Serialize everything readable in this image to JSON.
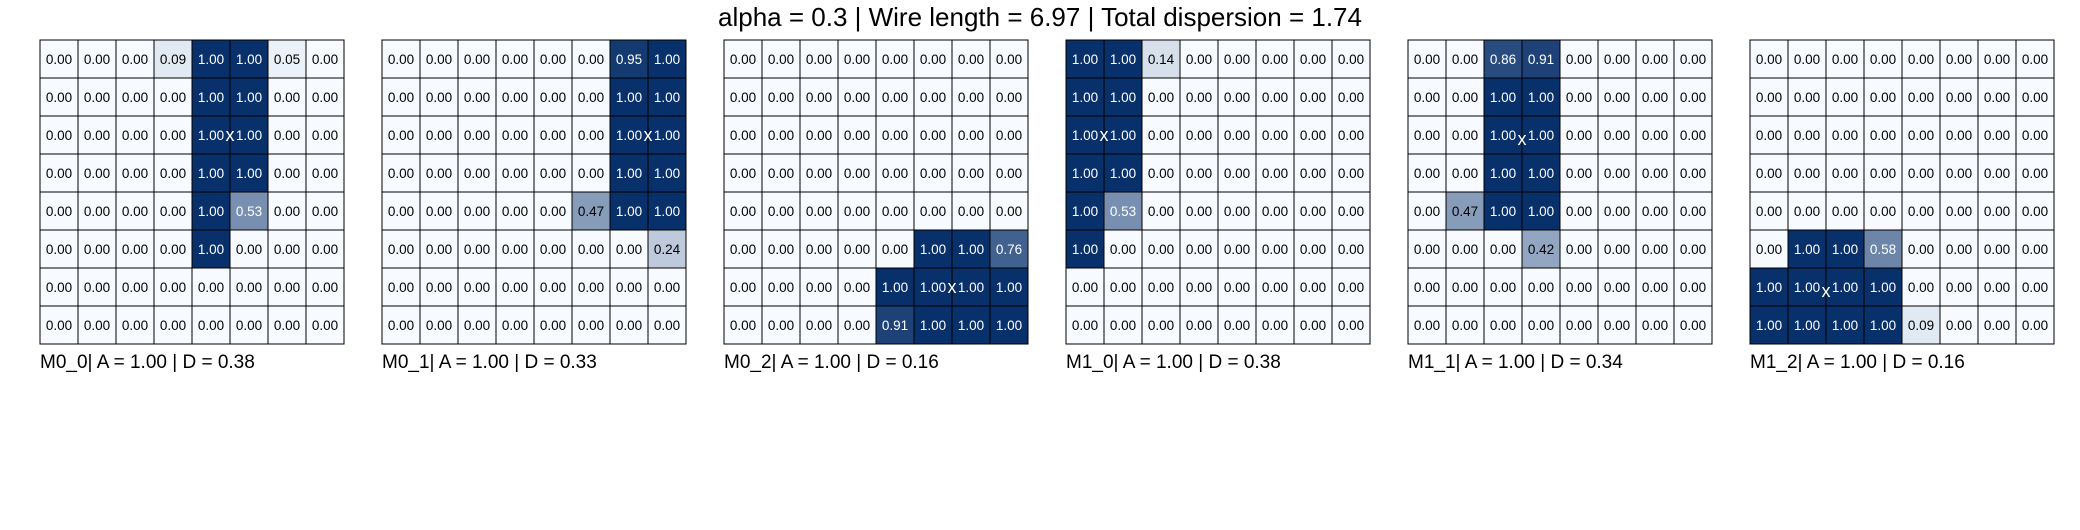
{
  "suptitle": "alpha = 0.3 | Wire length = 6.97 | Total dispersion = 1.74",
  "colormap": {
    "low": "#f7fbff",
    "high": "#08306b",
    "text_dark": "#000000",
    "text_light": "#ffffff",
    "grid": "#000000"
  },
  "marker_symbol": "x",
  "chart_data": [
    {
      "type": "heatmap",
      "label": "M0_0| A = 1.00 | D = 0.38",
      "marker": {
        "row": 2,
        "col": 4.5
      },
      "values": [
        [
          0.0,
          0.0,
          0.0,
          0.09,
          1.0,
          1.0,
          0.05,
          0.0
        ],
        [
          0.0,
          0.0,
          0.0,
          0.0,
          1.0,
          1.0,
          0.0,
          0.0
        ],
        [
          0.0,
          0.0,
          0.0,
          0.0,
          1.0,
          1.0,
          0.0,
          0.0
        ],
        [
          0.0,
          0.0,
          0.0,
          0.0,
          1.0,
          1.0,
          0.0,
          0.0
        ],
        [
          0.0,
          0.0,
          0.0,
          0.0,
          1.0,
          0.53,
          0.0,
          0.0
        ],
        [
          0.0,
          0.0,
          0.0,
          0.0,
          1.0,
          0.0,
          0.0,
          0.0
        ],
        [
          0.0,
          0.0,
          0.0,
          0.0,
          0.0,
          0.0,
          0.0,
          0.0
        ],
        [
          0.0,
          0.0,
          0.0,
          0.0,
          0.0,
          0.0,
          0.0,
          0.0
        ]
      ]
    },
    {
      "type": "heatmap",
      "label": "M0_1| A = 1.00 | D = 0.33",
      "marker": {
        "row": 2,
        "col": 6.5
      },
      "values": [
        [
          0.0,
          0.0,
          0.0,
          0.0,
          0.0,
          0.0,
          0.95,
          1.0
        ],
        [
          0.0,
          0.0,
          0.0,
          0.0,
          0.0,
          0.0,
          1.0,
          1.0
        ],
        [
          0.0,
          0.0,
          0.0,
          0.0,
          0.0,
          0.0,
          1.0,
          1.0
        ],
        [
          0.0,
          0.0,
          0.0,
          0.0,
          0.0,
          0.0,
          1.0,
          1.0
        ],
        [
          0.0,
          0.0,
          0.0,
          0.0,
          0.0,
          0.47,
          1.0,
          1.0
        ],
        [
          0.0,
          0.0,
          0.0,
          0.0,
          0.0,
          0.0,
          0.0,
          0.24
        ],
        [
          0.0,
          0.0,
          0.0,
          0.0,
          0.0,
          0.0,
          0.0,
          0.0
        ],
        [
          0.0,
          0.0,
          0.0,
          0.0,
          0.0,
          0.0,
          0.0,
          0.0
        ]
      ]
    },
    {
      "type": "heatmap",
      "label": "M0_2| A = 1.00 | D = 0.16",
      "marker": {
        "row": 6,
        "col": 5.5
      },
      "values": [
        [
          0.0,
          0.0,
          0.0,
          0.0,
          0.0,
          0.0,
          0.0,
          0.0
        ],
        [
          0.0,
          0.0,
          0.0,
          0.0,
          0.0,
          0.0,
          0.0,
          0.0
        ],
        [
          0.0,
          0.0,
          0.0,
          0.0,
          0.0,
          0.0,
          0.0,
          0.0
        ],
        [
          0.0,
          0.0,
          0.0,
          0.0,
          0.0,
          0.0,
          0.0,
          0.0
        ],
        [
          0.0,
          0.0,
          0.0,
          0.0,
          0.0,
          0.0,
          0.0,
          0.0
        ],
        [
          0.0,
          0.0,
          0.0,
          0.0,
          0.0,
          1.0,
          1.0,
          0.76
        ],
        [
          0.0,
          0.0,
          0.0,
          0.0,
          1.0,
          1.0,
          1.0,
          1.0
        ],
        [
          0.0,
          0.0,
          0.0,
          0.0,
          0.91,
          1.0,
          1.0,
          1.0
        ]
      ]
    },
    {
      "type": "heatmap",
      "label": "M1_0| A = 1.00 | D = 0.38",
      "marker": {
        "row": 2,
        "col": 0.5
      },
      "values": [
        [
          1.0,
          1.0,
          0.14,
          0.0,
          0.0,
          0.0,
          0.0,
          0.0
        ],
        [
          1.0,
          1.0,
          0.0,
          0.0,
          0.0,
          0.0,
          0.0,
          0.0
        ],
        [
          1.0,
          1.0,
          0.0,
          0.0,
          0.0,
          0.0,
          0.0,
          0.0
        ],
        [
          1.0,
          1.0,
          0.0,
          0.0,
          0.0,
          0.0,
          0.0,
          0.0
        ],
        [
          1.0,
          0.53,
          0.0,
          0.0,
          0.0,
          0.0,
          0.0,
          0.0
        ],
        [
          1.0,
          0.0,
          0.0,
          0.0,
          0.0,
          0.0,
          0.0,
          0.0
        ],
        [
          0.0,
          0.0,
          0.0,
          0.0,
          0.0,
          0.0,
          0.0,
          0.0
        ],
        [
          0.0,
          0.0,
          0.0,
          0.0,
          0.0,
          0.0,
          0.0,
          0.0
        ]
      ]
    },
    {
      "type": "heatmap",
      "label": "M1_1| A = 1.00 | D = 0.34",
      "marker": {
        "row": 2.1,
        "col": 2.5
      },
      "values": [
        [
          0.0,
          0.0,
          0.86,
          0.91,
          0.0,
          0.0,
          0.0,
          0.0
        ],
        [
          0.0,
          0.0,
          1.0,
          1.0,
          0.0,
          0.0,
          0.0,
          0.0
        ],
        [
          0.0,
          0.0,
          1.0,
          1.0,
          0.0,
          0.0,
          0.0,
          0.0
        ],
        [
          0.0,
          0.0,
          1.0,
          1.0,
          0.0,
          0.0,
          0.0,
          0.0
        ],
        [
          0.0,
          0.47,
          1.0,
          1.0,
          0.0,
          0.0,
          0.0,
          0.0
        ],
        [
          0.0,
          0.0,
          0.0,
          0.42,
          0.0,
          0.0,
          0.0,
          0.0
        ],
        [
          0.0,
          0.0,
          0.0,
          0.0,
          0.0,
          0.0,
          0.0,
          0.0
        ],
        [
          0.0,
          0.0,
          0.0,
          0.0,
          0.0,
          0.0,
          0.0,
          0.0
        ]
      ]
    },
    {
      "type": "heatmap",
      "label": "M1_2| A = 1.00 | D = 0.16",
      "marker": {
        "row": 6.1,
        "col": 1.5
      },
      "values": [
        [
          0.0,
          0.0,
          0.0,
          0.0,
          0.0,
          0.0,
          0.0,
          0.0
        ],
        [
          0.0,
          0.0,
          0.0,
          0.0,
          0.0,
          0.0,
          0.0,
          0.0
        ],
        [
          0.0,
          0.0,
          0.0,
          0.0,
          0.0,
          0.0,
          0.0,
          0.0
        ],
        [
          0.0,
          0.0,
          0.0,
          0.0,
          0.0,
          0.0,
          0.0,
          0.0
        ],
        [
          0.0,
          0.0,
          0.0,
          0.0,
          0.0,
          0.0,
          0.0,
          0.0
        ],
        [
          0.0,
          1.0,
          1.0,
          0.58,
          0.0,
          0.0,
          0.0,
          0.0
        ],
        [
          1.0,
          1.0,
          1.0,
          1.0,
          0.0,
          0.0,
          0.0,
          0.0
        ],
        [
          1.0,
          1.0,
          1.0,
          1.0,
          0.09,
          0.0,
          0.0,
          0.0
        ]
      ]
    }
  ]
}
